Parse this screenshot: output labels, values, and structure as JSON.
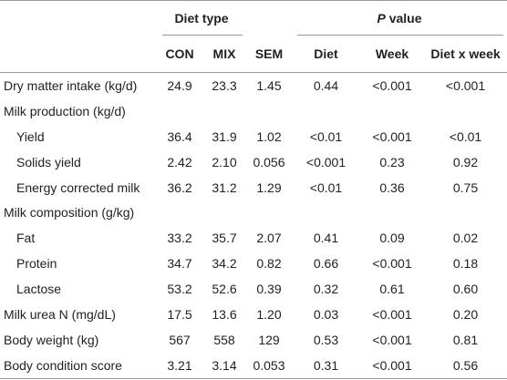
{
  "header": {
    "diet_type": "Diet type",
    "p_value": {
      "italic": "P",
      "rest": "value"
    },
    "columns": [
      "CON",
      "MIX",
      "SEM",
      "Diet",
      "Week",
      "Diet x week"
    ]
  },
  "table": {
    "rows": [
      {
        "label": "Dry matter intake (kg/d)",
        "values": [
          "24.9",
          "23.3",
          "1.45",
          "0.44",
          "<0.001",
          "<0.001"
        ]
      },
      {
        "label": "Milk production (kg/d)",
        "subrows": [
          {
            "label": "Yield",
            "values": [
              "36.4",
              "31.9",
              "1.02",
              "<0.01",
              "<0.001",
              "<0.01"
            ]
          },
          {
            "label": "Solids yield",
            "values": [
              "2.42",
              "2.10",
              "0.056",
              "<0.001",
              "0.23",
              "0.92"
            ]
          },
          {
            "label": "Energy corrected milk",
            "values": [
              "36.2",
              "31.2",
              "1.29",
              "<0.01",
              "0.36",
              "0.75"
            ]
          }
        ]
      },
      {
        "label": "Milk composition (g/kg)",
        "subrows": [
          {
            "label": "Fat",
            "values": [
              "33.2",
              "35.7",
              "2.07",
              "0.41",
              "0.09",
              "0.02"
            ]
          },
          {
            "label": "Protein",
            "values": [
              "34.7",
              "34.2",
              "0.82",
              "0.66",
              "<0.001",
              "0.18"
            ]
          },
          {
            "label": "Lactose",
            "values": [
              "53.2",
              "52.6",
              "0.39",
              "0.32",
              "0.61",
              "0.60"
            ]
          }
        ]
      },
      {
        "label": "Milk urea N (mg/dL)",
        "values": [
          "17.5",
          "13.6",
          "1.20",
          "0.03",
          "<0.001",
          "0.20"
        ]
      },
      {
        "label": "Body weight (kg)",
        "values": [
          "567",
          "558",
          "129",
          "0.53",
          "<0.001",
          "0.81"
        ]
      },
      {
        "label": "Body condition score",
        "values": [
          "3.21",
          "3.14",
          "0.053",
          "0.31",
          "<0.001",
          "0.56"
        ]
      }
    ]
  }
}
